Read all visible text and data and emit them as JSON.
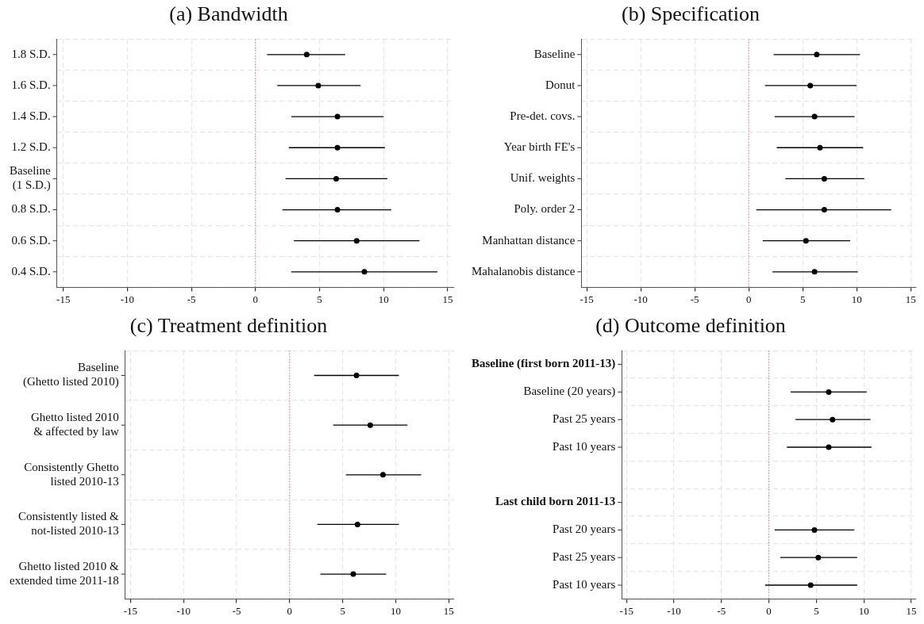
{
  "chart_data": [
    {
      "type": "scatter",
      "title": "(a) Bandwidth",
      "orientation": "horizontal",
      "marker": "circle",
      "grid": true,
      "xlim": [
        -15.5,
        15.5
      ],
      "xticks": [
        -15,
        -10,
        -5,
        0,
        5,
        10,
        15
      ],
      "categories": [
        "1.8 S.D.",
        "1.6 S.D.",
        "1.4 S.D.",
        "1.2 S.D.",
        "Baseline\n(1 S.D.)",
        "0.8 S.D.",
        "0.6 S.D.",
        "0.4 S.D."
      ],
      "color": "#000000",
      "values": [
        4.0,
        4.9,
        6.4,
        6.4,
        6.3,
        6.4,
        7.9,
        8.5
      ],
      "errors": [
        [
          0.9,
          7.0
        ],
        [
          1.7,
          8.2
        ],
        [
          2.8,
          10.0
        ],
        [
          2.6,
          10.1
        ],
        [
          2.35,
          10.3
        ],
        [
          2.1,
          10.6
        ],
        [
          3.0,
          12.8
        ],
        [
          2.8,
          14.2
        ]
      ],
      "ref_lines": [
        {
          "axis": "x",
          "value": 0,
          "color": "#e07090",
          "line_style": "dotted"
        }
      ]
    },
    {
      "type": "scatter",
      "title": "(b) Specification",
      "orientation": "horizontal",
      "marker": "circle",
      "grid": true,
      "xlim": [
        -15.5,
        15.5
      ],
      "xticks": [
        -15,
        -10,
        -5,
        0,
        5,
        10,
        15
      ],
      "categories": [
        "Baseline",
        "Donut",
        "Pre-det. covs.",
        "Year birth FE's",
        "Unif. weights",
        "Poly. order 2",
        "Manhattan distance",
        "Mahalanobis distance"
      ],
      "color": "#000000",
      "values": [
        6.3,
        5.7,
        6.1,
        6.6,
        7.0,
        7.0,
        5.3,
        6.1
      ],
      "errors": [
        [
          2.3,
          10.3
        ],
        [
          1.5,
          10.0
        ],
        [
          2.4,
          9.8
        ],
        [
          2.6,
          10.6
        ],
        [
          3.4,
          10.7
        ],
        [
          0.7,
          13.2
        ],
        [
          1.3,
          9.4
        ],
        [
          2.2,
          10.1
        ]
      ],
      "ref_lines": [
        {
          "axis": "x",
          "value": 0,
          "color": "#e07090",
          "line_style": "dotted"
        }
      ]
    },
    {
      "type": "scatter",
      "title": "(c) Treatment definition",
      "orientation": "horizontal",
      "marker": "circle",
      "grid": true,
      "xlim": [
        -15.5,
        15.5
      ],
      "xticks": [
        -15,
        -10,
        -5,
        0,
        5,
        10,
        15
      ],
      "categories": [
        "Baseline\n(Ghetto listed 2010)",
        "Ghetto listed 2010\n& affected by law",
        "Consistently Ghetto\nlisted 2010-13",
        "Consistently listed &\nnot-listed 2010-13",
        "Ghetto listed 2010 &\nextended time 2011-18"
      ],
      "color": "#000000",
      "values": [
        6.3,
        7.6,
        8.8,
        6.4,
        6.0
      ],
      "errors": [
        [
          2.3,
          10.3
        ],
        [
          4.1,
          11.1
        ],
        [
          5.3,
          12.4
        ],
        [
          2.6,
          10.3
        ],
        [
          2.9,
          9.1
        ]
      ],
      "ref_lines": [
        {
          "axis": "x",
          "value": 0,
          "color": "#e07090",
          "line_style": "dotted"
        }
      ]
    },
    {
      "type": "scatter",
      "title": "(d) Outcome definition",
      "orientation": "horizontal",
      "marker": "circle",
      "grid": true,
      "xlim": [
        -15.5,
        15.5
      ],
      "xticks": [
        -15,
        -10,
        -5,
        0,
        5,
        10,
        15
      ],
      "categories": [
        "Baseline (first born 2011-13)",
        "Baseline (20 years)",
        "Past 25 years",
        "Past 10 years",
        null,
        "Last child born 2011-13",
        "Past 20 years",
        "Past 25 years",
        "Past 10 years"
      ],
      "color": "#000000",
      "values": [
        null,
        6.3,
        6.7,
        6.3,
        null,
        null,
        4.8,
        5.2,
        4.4
      ],
      "errors": [
        null,
        [
          2.3,
          10.3
        ],
        [
          2.8,
          10.7
        ],
        [
          1.9,
          10.8
        ],
        null,
        null,
        [
          0.6,
          9.0
        ],
        [
          1.2,
          9.3
        ],
        [
          -0.4,
          9.3
        ]
      ],
      "ref_lines": [
        {
          "axis": "x",
          "value": 0,
          "color": "#e07090",
          "line_style": "dotted"
        }
      ]
    }
  ]
}
